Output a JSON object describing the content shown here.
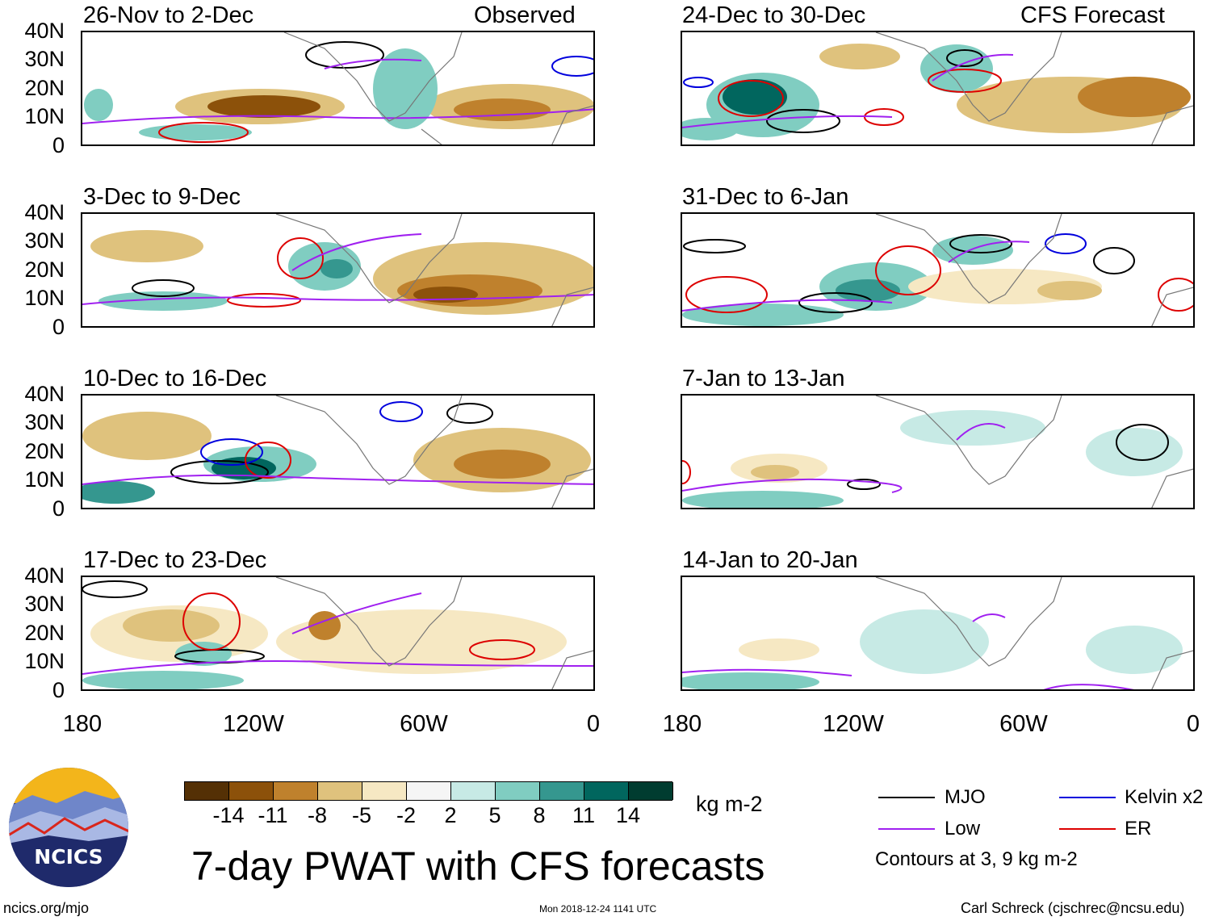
{
  "panels": {
    "left": [
      {
        "title": "26-Nov to 2-Dec",
        "tag": "Observed"
      },
      {
        "title": "3-Dec to 9-Dec",
        "tag": ""
      },
      {
        "title": "10-Dec to 16-Dec",
        "tag": ""
      },
      {
        "title": "17-Dec to 23-Dec",
        "tag": ""
      }
    ],
    "right": [
      {
        "title": "24-Dec to 30-Dec",
        "tag": "CFS Forecast"
      },
      {
        "title": "31-Dec to 6-Jan",
        "tag": ""
      },
      {
        "title": "7-Jan to 13-Jan",
        "tag": ""
      },
      {
        "title": "14-Jan to 20-Jan",
        "tag": ""
      }
    ]
  },
  "y_axis": [
    "40N",
    "30N",
    "20N",
    "10N",
    "0"
  ],
  "x_axis": [
    "180",
    "120W",
    "60W",
    "0"
  ],
  "colorbar": {
    "labels": [
      "-14",
      "-11",
      "-8",
      "-5",
      "-2",
      "2",
      "5",
      "8",
      "11",
      "14"
    ],
    "units": "kg m-2",
    "colors": [
      "#543005",
      "#8c510a",
      "#bf812d",
      "#dfc27d",
      "#f6e8c3",
      "#f5f5f5",
      "#c7eae5",
      "#80cdc1",
      "#35978f",
      "#01665e",
      "#003c30"
    ]
  },
  "legend": {
    "items": [
      {
        "label": "MJO",
        "color": "#000000"
      },
      {
        "label": "Kelvin x2",
        "color": "#0000dd"
      },
      {
        "label": "Low",
        "color": "#a020f0"
      },
      {
        "label": "ER",
        "color": "#dd0000"
      }
    ],
    "note": "Contours at 3, 9 kg m-2"
  },
  "logo_text": "NCICS",
  "main_title": "7-day PWAT with CFS forecasts",
  "footer": {
    "left": "ncics.org/mjo",
    "center": "Mon 2018-12-24 1141 UTC",
    "right": "Carl Schreck (cjschrec@ncsu.edu)"
  }
}
